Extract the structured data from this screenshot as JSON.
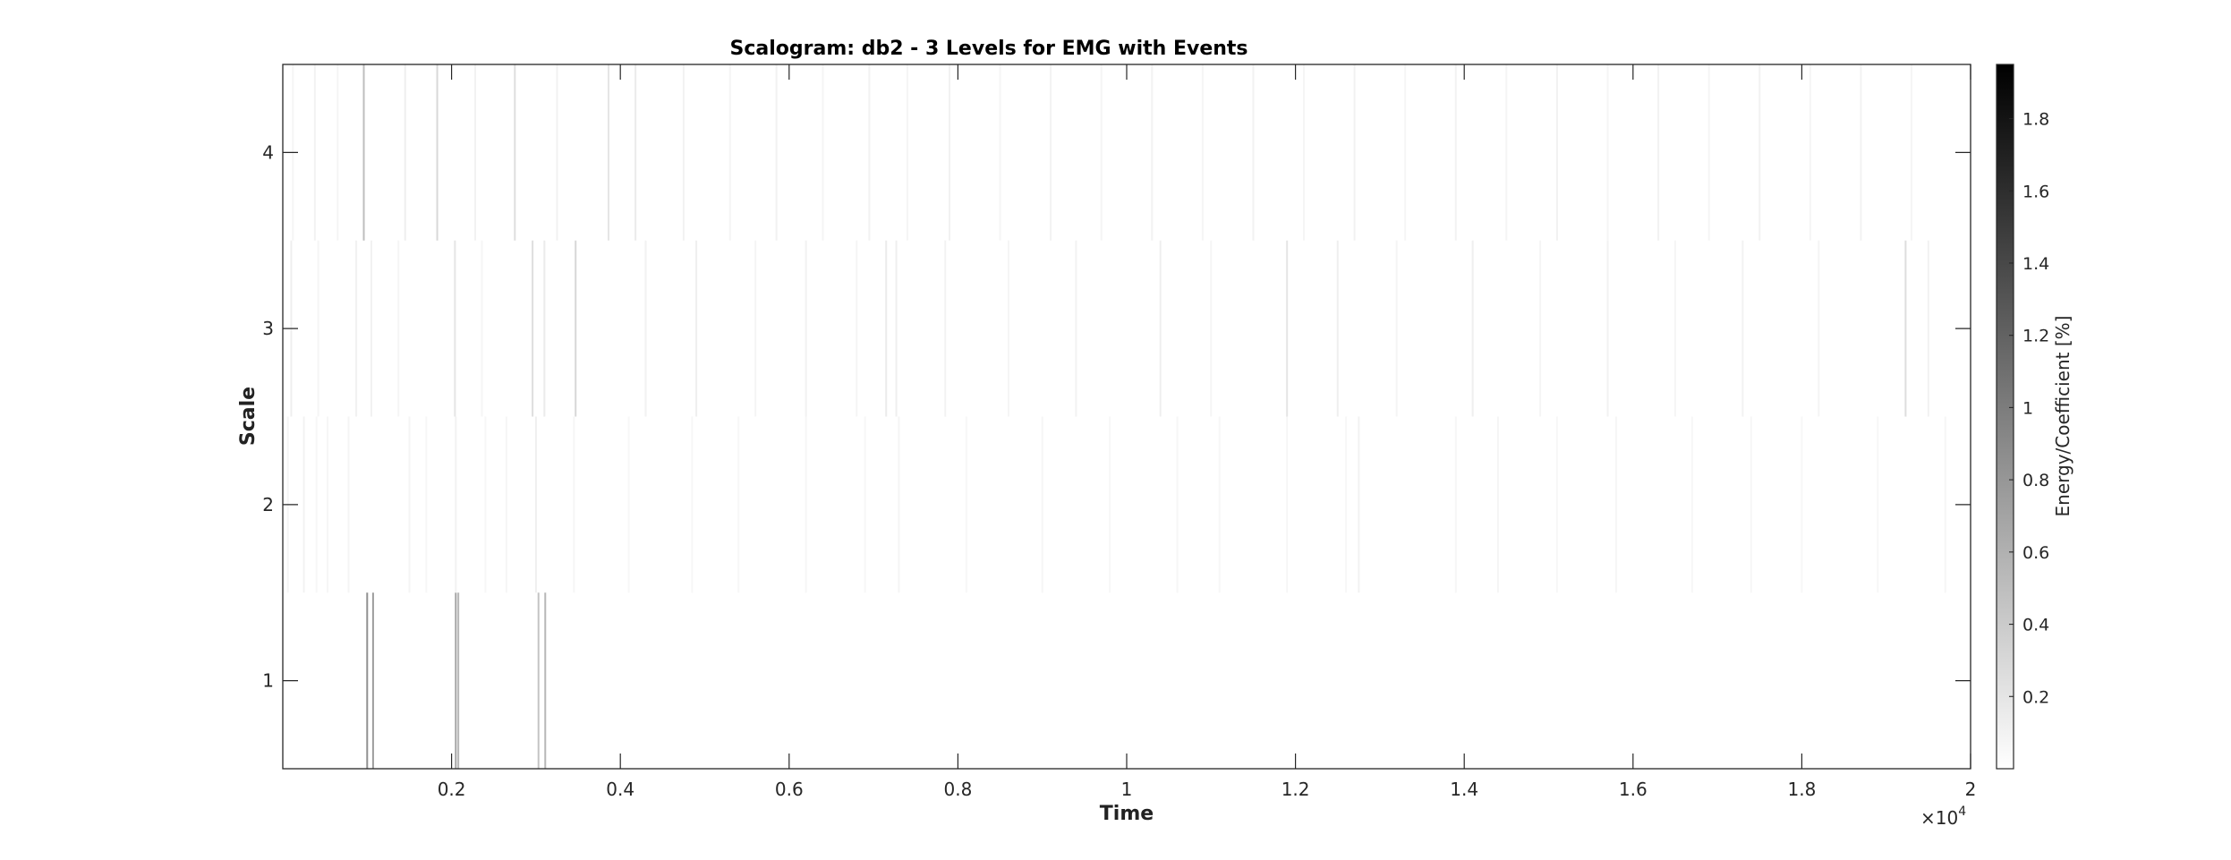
{
  "chart_data": {
    "type": "heatmap",
    "title": "Scalogram: db2 - 3 Levels for EMG with Events",
    "xlabel": "Time",
    "ylabel": "Scale",
    "x_multiplier": "×10",
    "x_multiplier_exp": "4",
    "xlim": [
      0,
      20000
    ],
    "ylim": [
      0.5,
      4.5
    ],
    "x_ticks": [
      2000,
      4000,
      6000,
      8000,
      10000,
      12000,
      14000,
      16000,
      18000,
      20000
    ],
    "x_tick_labels": [
      "0.2",
      "0.4",
      "0.6",
      "0.8",
      "1",
      "1.2",
      "1.4",
      "1.6",
      "1.8",
      "2"
    ],
    "y_ticks": [
      1,
      2,
      3,
      4
    ],
    "y_tick_labels": [
      "1",
      "2",
      "3",
      "4"
    ],
    "colormap": "gray-reversed",
    "colorbar": {
      "label": "Energy/Coefficient [%]",
      "range": [
        0,
        1.95
      ],
      "ticks": [
        0.2,
        0.4,
        0.6,
        0.8,
        1.0,
        1.2,
        1.4,
        1.6,
        1.8
      ],
      "tick_labels": [
        "0.2",
        "0.4",
        "0.6",
        "0.8",
        "1",
        "1.2",
        "1.4",
        "1.6",
        "1.8"
      ]
    },
    "rows": [
      {
        "scale": 1,
        "events": [
          {
            "time": 1000,
            "value": 0.85
          },
          {
            "time": 1070,
            "value": 0.75
          },
          {
            "time": 2050,
            "value": 0.7
          },
          {
            "time": 2080,
            "value": 0.55
          },
          {
            "time": 3030,
            "value": 0.45
          },
          {
            "time": 3110,
            "value": 0.55
          }
        ]
      },
      {
        "scale": 2,
        "events": [
          {
            "time": 60,
            "value": 0.08
          },
          {
            "time": 250,
            "value": 0.1
          },
          {
            "time": 400,
            "value": 0.06
          },
          {
            "time": 530,
            "value": 0.07
          },
          {
            "time": 780,
            "value": 0.08
          },
          {
            "time": 1500,
            "value": 0.08
          },
          {
            "time": 1700,
            "value": 0.06
          },
          {
            "time": 2050,
            "value": 0.1
          },
          {
            "time": 2400,
            "value": 0.06
          },
          {
            "time": 2650,
            "value": 0.07
          },
          {
            "time": 3000,
            "value": 0.12
          },
          {
            "time": 3450,
            "value": 0.07
          },
          {
            "time": 4100,
            "value": 0.06
          },
          {
            "time": 4850,
            "value": 0.07
          },
          {
            "time": 5400,
            "value": 0.06
          },
          {
            "time": 6200,
            "value": 0.07
          },
          {
            "time": 6900,
            "value": 0.06
          },
          {
            "time": 7300,
            "value": 0.08
          },
          {
            "time": 8100,
            "value": 0.06
          },
          {
            "time": 9000,
            "value": 0.07
          },
          {
            "time": 9800,
            "value": 0.06
          },
          {
            "time": 10600,
            "value": 0.07
          },
          {
            "time": 11100,
            "value": 0.06
          },
          {
            "time": 11900,
            "value": 0.07
          },
          {
            "time": 12600,
            "value": 0.06
          },
          {
            "time": 12750,
            "value": 0.1
          },
          {
            "time": 13900,
            "value": 0.07
          },
          {
            "time": 14400,
            "value": 0.08
          },
          {
            "time": 15100,
            "value": 0.06
          },
          {
            "time": 15800,
            "value": 0.07
          },
          {
            "time": 16700,
            "value": 0.06
          },
          {
            "time": 17400,
            "value": 0.07
          },
          {
            "time": 18000,
            "value": 0.06
          },
          {
            "time": 18900,
            "value": 0.06
          },
          {
            "time": 19700,
            "value": 0.07
          }
        ]
      },
      {
        "scale": 3,
        "events": [
          {
            "time": 100,
            "value": 0.12
          },
          {
            "time": 420,
            "value": 0.08
          },
          {
            "time": 870,
            "value": 0.1
          },
          {
            "time": 1050,
            "value": 0.1
          },
          {
            "time": 1370,
            "value": 0.08
          },
          {
            "time": 2040,
            "value": 0.2
          },
          {
            "time": 2360,
            "value": 0.08
          },
          {
            "time": 2960,
            "value": 0.25
          },
          {
            "time": 3100,
            "value": 0.15
          },
          {
            "time": 3470,
            "value": 0.3
          },
          {
            "time": 4300,
            "value": 0.1
          },
          {
            "time": 4900,
            "value": 0.12
          },
          {
            "time": 5600,
            "value": 0.08
          },
          {
            "time": 6200,
            "value": 0.1
          },
          {
            "time": 6800,
            "value": 0.08
          },
          {
            "time": 7150,
            "value": 0.15
          },
          {
            "time": 7270,
            "value": 0.12
          },
          {
            "time": 7850,
            "value": 0.1
          },
          {
            "time": 8600,
            "value": 0.08
          },
          {
            "time": 9400,
            "value": 0.1
          },
          {
            "time": 10400,
            "value": 0.12
          },
          {
            "time": 11000,
            "value": 0.08
          },
          {
            "time": 11900,
            "value": 0.2
          },
          {
            "time": 12500,
            "value": 0.12
          },
          {
            "time": 13200,
            "value": 0.08
          },
          {
            "time": 14100,
            "value": 0.12
          },
          {
            "time": 14900,
            "value": 0.08
          },
          {
            "time": 15700,
            "value": 0.1
          },
          {
            "time": 16500,
            "value": 0.08
          },
          {
            "time": 17300,
            "value": 0.1
          },
          {
            "time": 18200,
            "value": 0.08
          },
          {
            "time": 19230,
            "value": 0.25
          },
          {
            "time": 19500,
            "value": 0.1
          }
        ]
      },
      {
        "scale": 4,
        "events": [
          {
            "time": 120,
            "value": 0.08
          },
          {
            "time": 380,
            "value": 0.1
          },
          {
            "time": 650,
            "value": 0.08
          },
          {
            "time": 960,
            "value": 0.5
          },
          {
            "time": 1450,
            "value": 0.12
          },
          {
            "time": 1830,
            "value": 0.3
          },
          {
            "time": 2280,
            "value": 0.1
          },
          {
            "time": 2750,
            "value": 0.25
          },
          {
            "time": 3250,
            "value": 0.1
          },
          {
            "time": 3860,
            "value": 0.2
          },
          {
            "time": 4180,
            "value": 0.15
          },
          {
            "time": 4750,
            "value": 0.1
          },
          {
            "time": 5300,
            "value": 0.08
          },
          {
            "time": 5850,
            "value": 0.1
          },
          {
            "time": 6400,
            "value": 0.08
          },
          {
            "time": 6950,
            "value": 0.1
          },
          {
            "time": 7400,
            "value": 0.08
          },
          {
            "time": 7900,
            "value": 0.1
          },
          {
            "time": 8500,
            "value": 0.08
          },
          {
            "time": 9100,
            "value": 0.1
          },
          {
            "time": 9700,
            "value": 0.08
          },
          {
            "time": 10300,
            "value": 0.1
          },
          {
            "time": 10900,
            "value": 0.08
          },
          {
            "time": 11500,
            "value": 0.1
          },
          {
            "time": 12100,
            "value": 0.08
          },
          {
            "time": 12700,
            "value": 0.1
          },
          {
            "time": 13300,
            "value": 0.08
          },
          {
            "time": 13900,
            "value": 0.1
          },
          {
            "time": 14500,
            "value": 0.08
          },
          {
            "time": 15100,
            "value": 0.1
          },
          {
            "time": 15700,
            "value": 0.08
          },
          {
            "time": 16300,
            "value": 0.1
          },
          {
            "time": 16900,
            "value": 0.08
          },
          {
            "time": 17500,
            "value": 0.1
          },
          {
            "time": 18100,
            "value": 0.08
          },
          {
            "time": 18700,
            "value": 0.1
          },
          {
            "time": 19300,
            "value": 0.08
          }
        ]
      }
    ]
  }
}
